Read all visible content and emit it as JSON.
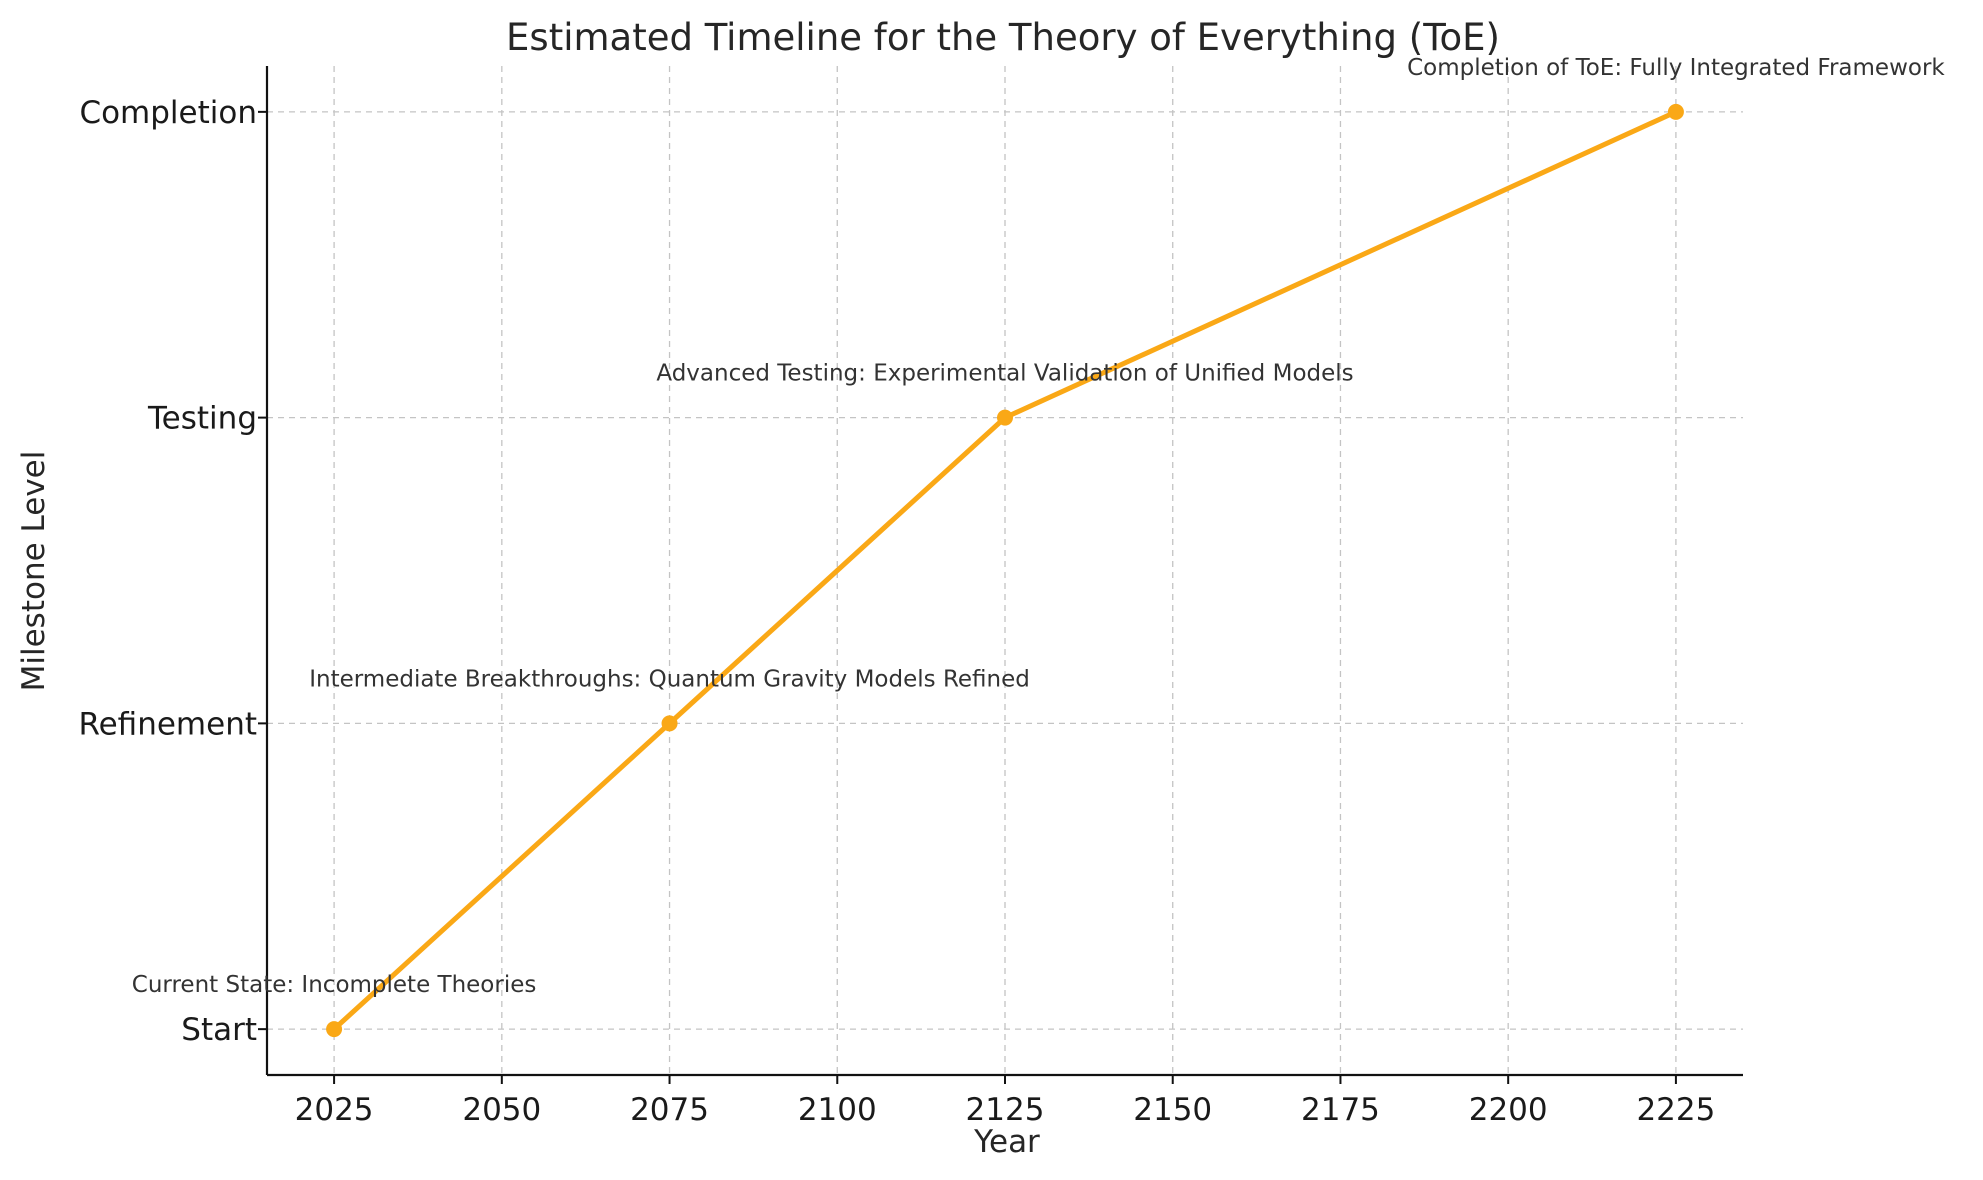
{
  "chart_data": {
    "type": "line",
    "title": "Estimated Timeline for the Theory of Everything (ToE)",
    "xlabel": "Year",
    "ylabel": "Milestone Level",
    "x_ticks": [
      2025,
      2050,
      2075,
      2100,
      2125,
      2150,
      2175,
      2200,
      2225
    ],
    "xlim": [
      2015,
      2235
    ],
    "y_categories": [
      "Start",
      "Refinement",
      "Testing",
      "Completion"
    ],
    "ylim": [
      -0.15,
      3.15
    ],
    "grid": true,
    "legend": "none",
    "series": [
      {
        "color": "#FAA816",
        "points": [
          {
            "x": 2025,
            "y": "Start"
          },
          {
            "x": 2075,
            "y": "Refinement"
          },
          {
            "x": 2125,
            "y": "Testing"
          },
          {
            "x": 2225,
            "y": "Completion"
          }
        ]
      }
    ],
    "annotations": [
      {
        "x": 2025,
        "y": "Start",
        "text": "Current State: Incomplete Theories"
      },
      {
        "x": 2075,
        "y": "Refinement",
        "text": "Intermediate Breakthroughs: Quantum Gravity Models Refined"
      },
      {
        "x": 2125,
        "y": "Testing",
        "text": "Advanced Testing: Experimental Validation of Unified Models"
      },
      {
        "x": 2225,
        "y": "Completion",
        "text": "Completion of ToE: Fully Integrated Framework"
      }
    ]
  }
}
